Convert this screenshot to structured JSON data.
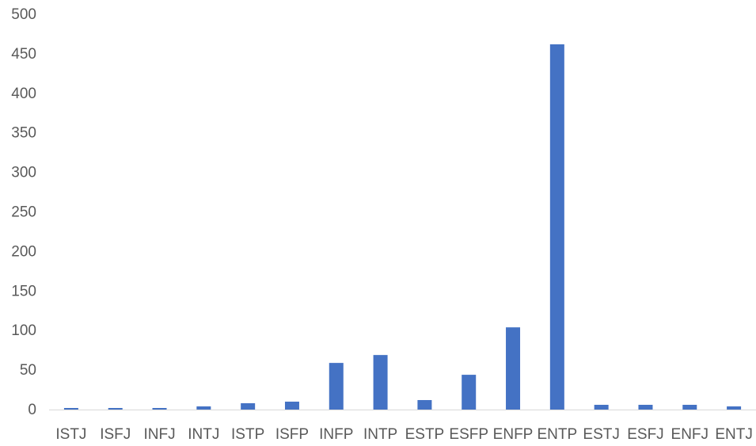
{
  "chart_data": {
    "type": "bar",
    "title": "",
    "xlabel": "",
    "ylabel": "",
    "categories": [
      "ISTJ",
      "ISFJ",
      "INFJ",
      "INTJ",
      "ISTP",
      "ISFP",
      "INFP",
      "INTP",
      "ESTP",
      "ESFP",
      "ENFP",
      "ENTP",
      "ESTJ",
      "ESFJ",
      "ENFJ",
      "ENTJ"
    ],
    "values": [
      2,
      2,
      2,
      4,
      8,
      10,
      59,
      69,
      12,
      44,
      104,
      462,
      6,
      6,
      6,
      4
    ],
    "ylim": [
      0,
      500
    ],
    "yticks": [
      0,
      50,
      100,
      150,
      200,
      250,
      300,
      350,
      400,
      450,
      500
    ],
    "grid": false,
    "legend": "none",
    "bar_color": "#4472C4",
    "axis_color": "#D9D9D9",
    "label_color": "#595959"
  }
}
